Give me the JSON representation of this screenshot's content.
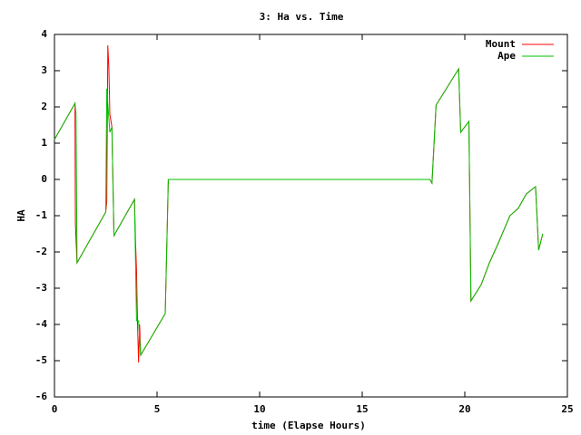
{
  "chart_data": {
    "type": "line",
    "title": "3: Ha vs. Time",
    "x_label": "time (Elapse Hours)",
    "y_label": "HA",
    "xlim": [
      0,
      25
    ],
    "xticks": [
      0,
      5,
      10,
      15,
      20,
      25
    ],
    "ylim": [
      -6,
      4
    ],
    "yticks": [
      -6,
      -5,
      -4,
      -3,
      -2,
      -1,
      0,
      1,
      2,
      3,
      4
    ],
    "legend": "top-right",
    "series": [
      {
        "name": "Mount",
        "color": "#ff0000",
        "x": [
          0,
          1.0,
          1.02,
          1.1,
          2.5,
          2.55,
          2.6,
          2.65,
          2.7,
          2.8,
          2.9,
          3.9,
          3.95,
          4.0,
          4.05,
          4.1,
          4.15,
          4.2,
          5.4,
          5.55,
          18.3,
          18.4,
          18.6,
          19.7,
          19.8,
          20.2,
          20.3,
          20.8,
          21.2,
          21.6,
          22.2,
          22.6,
          23.0,
          23.45,
          23.6,
          23.8
        ],
        "values": [
          1.1,
          2.1,
          -1.2,
          -2.3,
          -0.9,
          -0.6,
          3.7,
          3.1,
          1.8,
          1.45,
          -1.55,
          -0.55,
          -1.7,
          -2.5,
          -4.0,
          -5.05,
          -4.0,
          -4.85,
          -3.7,
          0,
          0,
          -0.1,
          2.05,
          3.05,
          1.3,
          1.6,
          -3.35,
          -2.9,
          -2.3,
          -1.8,
          -1.0,
          -0.8,
          -0.4,
          -0.2,
          -1.95,
          -1.5
        ]
      },
      {
        "name": "Ape",
        "color": "#00c000",
        "x": [
          0,
          1.0,
          1.05,
          1.1,
          2.5,
          2.55,
          2.7,
          2.8,
          2.9,
          3.9,
          4.0,
          4.1,
          4.2,
          5.4,
          5.55,
          18.3,
          18.4,
          18.6,
          19.7,
          19.8,
          20.2,
          20.3,
          20.8,
          21.2,
          21.6,
          22.2,
          22.6,
          23.0,
          23.45,
          23.6,
          23.8
        ],
        "values": [
          1.1,
          2.1,
          1.8,
          -2.3,
          -0.9,
          2.5,
          1.3,
          1.45,
          -1.55,
          -0.55,
          -3.9,
          -3.9,
          -4.85,
          -3.7,
          0,
          0,
          -0.1,
          2.05,
          3.05,
          1.3,
          1.6,
          -3.35,
          -2.9,
          -2.3,
          -1.8,
          -1.0,
          -0.8,
          -0.4,
          -0.2,
          -1.95,
          -1.5
        ]
      }
    ]
  }
}
